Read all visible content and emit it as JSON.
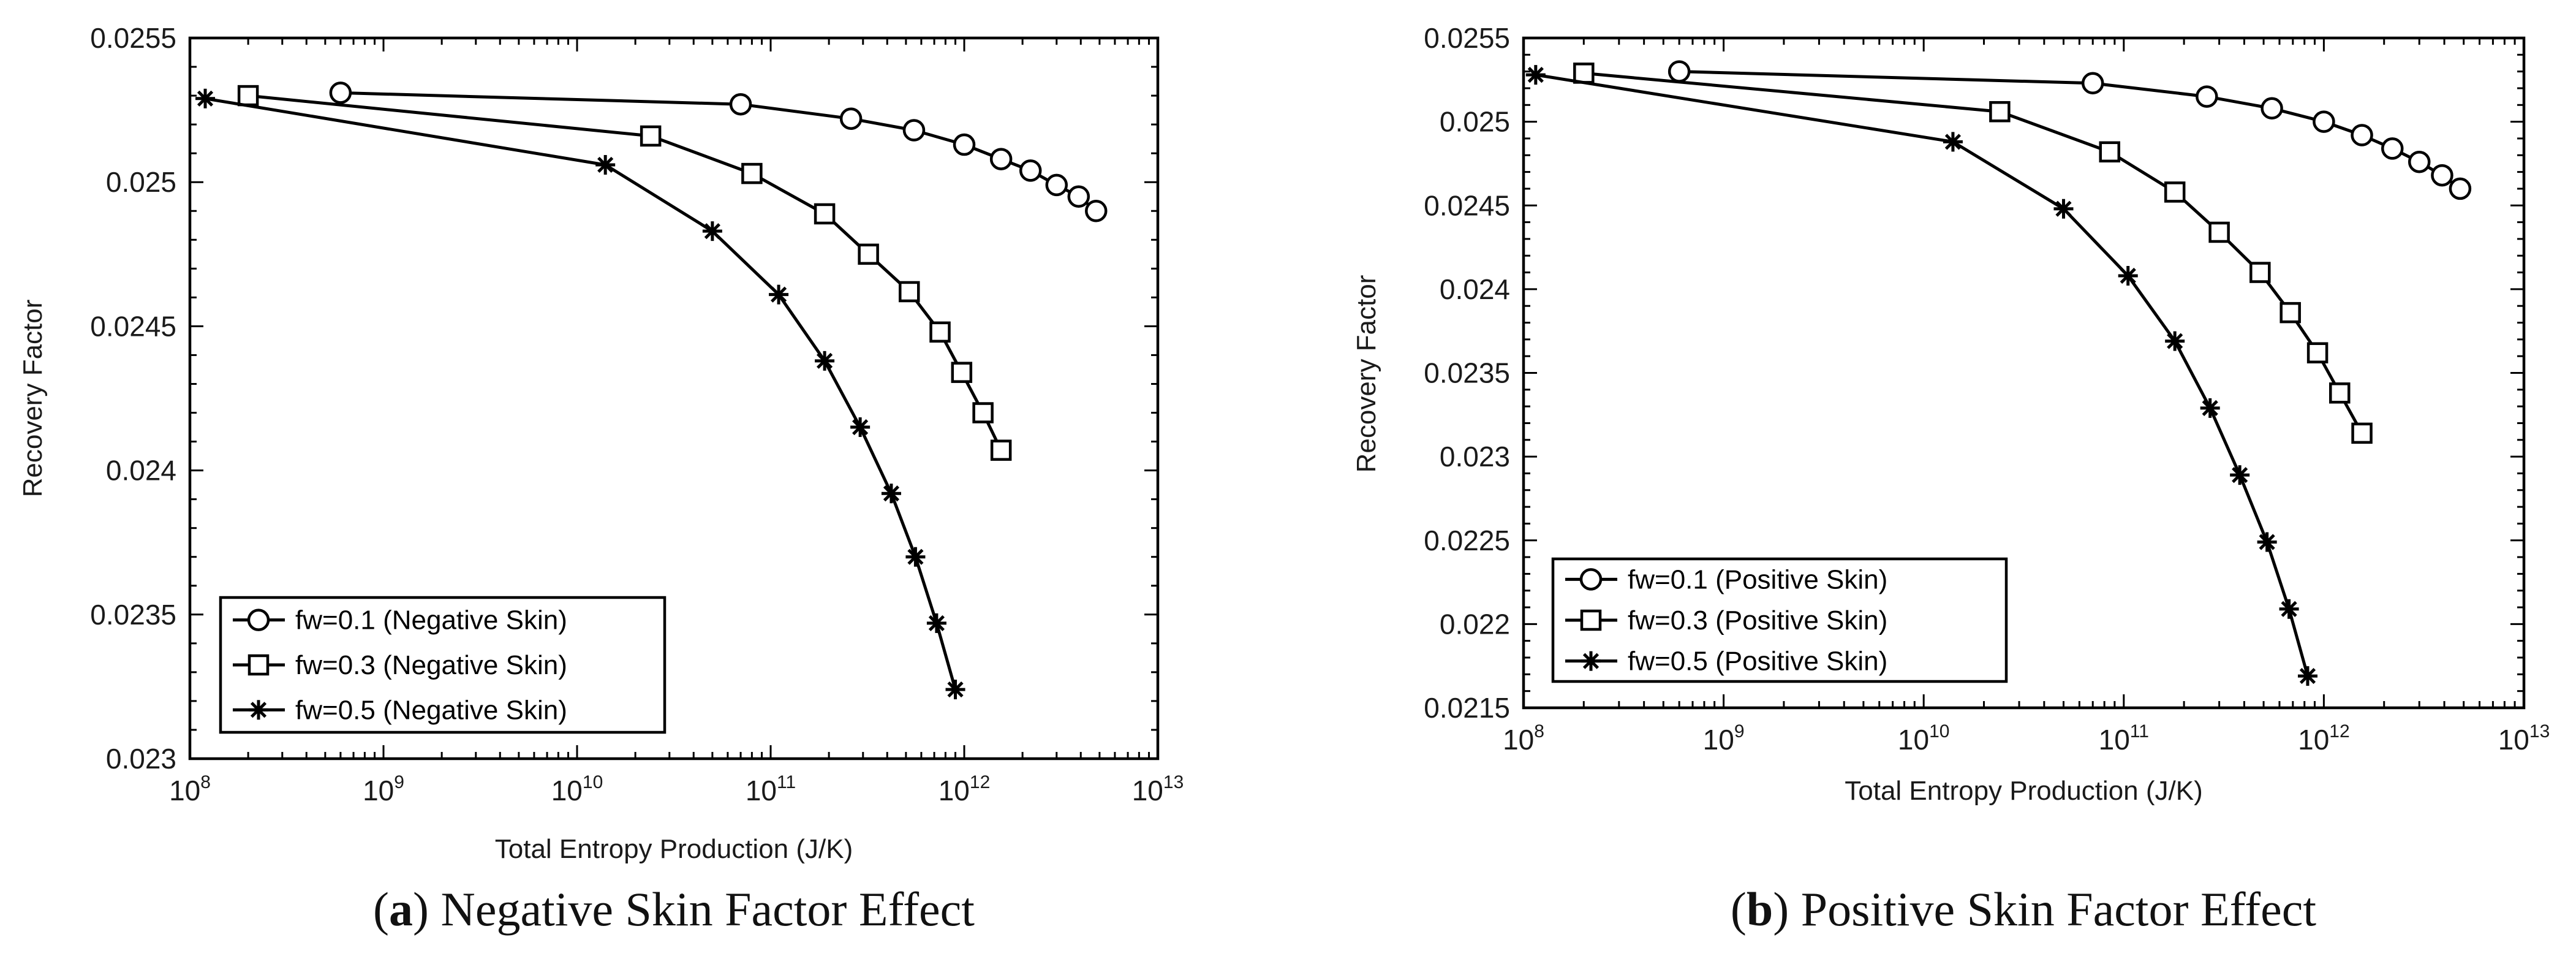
{
  "chart_data": [
    {
      "type": "line",
      "caption": {
        "open": "(",
        "letter": "a",
        "close": ")",
        "text": "Negative Skin Factor Effect"
      },
      "xlabel": "Total Entropy Production (J/K)",
      "ylabel": "Recovery Factor",
      "xscale": "log",
      "xlim": [
        100000000.0,
        10000000000000.0
      ],
      "ylim": [
        0.023,
        0.0255
      ],
      "xticks": [
        8,
        9,
        10,
        11,
        12,
        13
      ],
      "yticks": [
        "0.023",
        "0.0235",
        "0.024",
        "0.0245",
        "0.025",
        "0.0255"
      ],
      "legend_position": "bottom-left",
      "series": [
        {
          "name": "fw=0.1 (Negative Skin)",
          "marker": "circle",
          "x": [
            600000000.0,
            70000000000.0,
            260000000000.0,
            550000000000.0,
            1000000000000.0,
            1550000000000.0,
            2200000000000.0,
            3000000000000.0,
            3900000000000.0,
            4800000000000.0
          ],
          "y": [
            0.02531,
            0.02527,
            0.02522,
            0.02518,
            0.02513,
            0.02508,
            0.02504,
            0.02499,
            0.02495,
            0.0249
          ]
        },
        {
          "name": "fw=0.3 (Negative Skin)",
          "marker": "square",
          "x": [
            200000000.0,
            24000000000.0,
            80000000000.0,
            190000000000.0,
            320000000000.0,
            520000000000.0,
            750000000000.0,
            970000000000.0,
            1250000000000.0,
            1550000000000.0
          ],
          "y": [
            0.0253,
            0.02516,
            0.02503,
            0.02489,
            0.02475,
            0.02462,
            0.02448,
            0.02434,
            0.0242,
            0.02407
          ]
        },
        {
          "name": "fw=0.5 (Negative Skin)",
          "marker": "star",
          "x": [
            120000000.0,
            14000000000.0,
            50000000000.0,
            110000000000.0,
            190000000000.0,
            290000000000.0,
            420000000000.0,
            560000000000.0,
            720000000000.0,
            900000000000.0
          ],
          "y": [
            0.02529,
            0.02506,
            0.02483,
            0.02461,
            0.02438,
            0.02415,
            0.02392,
            0.0237,
            0.02347,
            0.02324
          ]
        }
      ]
    },
    {
      "type": "line",
      "caption": {
        "open": "(",
        "letter": "b",
        "close": ")",
        "text": "Positive Skin Factor Effect"
      },
      "xlabel": "Total Entropy Production (J/K)",
      "ylabel": "Recovery Factor",
      "xscale": "log",
      "xlim": [
        100000000.0,
        10000000000000.0
      ],
      "ylim": [
        0.0215,
        0.0255
      ],
      "xticks": [
        8,
        9,
        10,
        11,
        12,
        13
      ],
      "yticks": [
        "0.0215",
        "0.022",
        "0.0225",
        "0.023",
        "0.0235",
        "0.024",
        "0.0245",
        "0.025",
        "0.0255"
      ],
      "legend_position": "bottom-left",
      "series": [
        {
          "name": "fw=0.1 (Positive Skin)",
          "marker": "circle",
          "x": [
            600000000.0,
            70000000000.0,
            260000000000.0,
            550000000000.0,
            1000000000000.0,
            1550000000000.0,
            2200000000000.0,
            3000000000000.0,
            3900000000000.0,
            4800000000000.0
          ],
          "y": [
            0.0253,
            0.02523,
            0.02515,
            0.02508,
            0.025,
            0.02492,
            0.02484,
            0.02476,
            0.02468,
            0.0246
          ]
        },
        {
          "name": "fw=0.3 (Positive Skin)",
          "marker": "square",
          "x": [
            200000000.0,
            24000000000.0,
            85000000000.0,
            180000000000.0,
            300000000000.0,
            480000000000.0,
            680000000000.0,
            930000000000.0,
            1200000000000.0,
            1550000000000.0
          ],
          "y": [
            0.02529,
            0.02506,
            0.02482,
            0.02458,
            0.02434,
            0.0241,
            0.02386,
            0.02362,
            0.02338,
            0.02314
          ]
        },
        {
          "name": "fw=0.5 (Positive Skin)",
          "marker": "star",
          "x": [
            115000000.0,
            14000000000.0,
            50000000000.0,
            105000000000.0,
            180000000000.0,
            270000000000.0,
            380000000000.0,
            520000000000.0,
            670000000000.0,
            830000000000.0
          ],
          "y": [
            0.02528,
            0.02488,
            0.02448,
            0.02408,
            0.02369,
            0.02329,
            0.02289,
            0.02249,
            0.02209,
            0.02169
          ]
        }
      ]
    }
  ]
}
